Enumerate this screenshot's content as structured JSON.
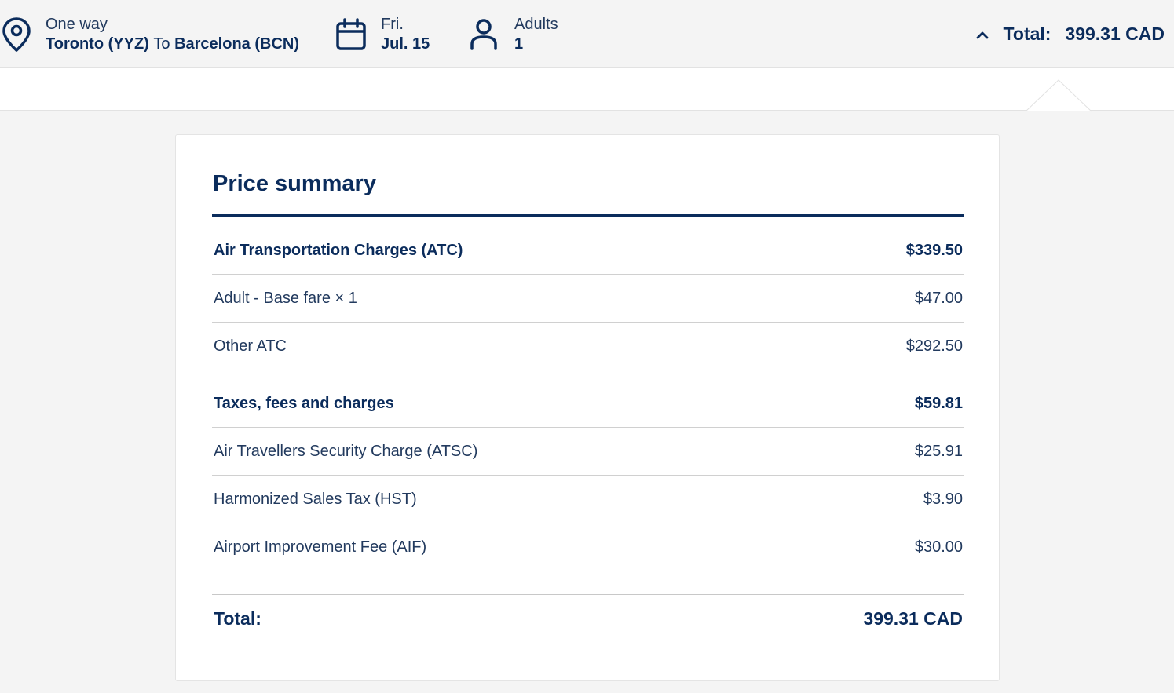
{
  "header": {
    "trip_type": "One way",
    "origin": "Toronto (YYZ)",
    "to_word": "To",
    "destination": "Barcelona (BCN)",
    "day": "Fri.",
    "date": "Jul. 15",
    "pax_label": "Adults",
    "pax_count": "1",
    "total_label": "Total:",
    "total_value": "399.31 CAD"
  },
  "summary": {
    "title": "Price summary",
    "sections": [
      {
        "heading": {
          "label": "Air Transportation Charges (ATC)",
          "amount": "$339.50"
        },
        "items": [
          {
            "label": "Adult - Base fare × 1",
            "amount": "$47.00"
          },
          {
            "label": "Other ATC",
            "amount": "$292.50"
          }
        ]
      },
      {
        "heading": {
          "label": "Taxes, fees and charges",
          "amount": "$59.81"
        },
        "items": [
          {
            "label": "Air Travellers Security Charge (ATSC)",
            "amount": "$25.91"
          },
          {
            "label": "Harmonized Sales Tax (HST)",
            "amount": "$3.90"
          },
          {
            "label": "Airport Improvement Fee (AIF)",
            "amount": "$30.00"
          }
        ]
      }
    ],
    "total_label": "Total:",
    "total_value": "399.31 CAD"
  },
  "colors": {
    "primary": "#0b2c5c",
    "text": "#223a5e",
    "background": "#f4f4f4",
    "card": "#ffffff"
  }
}
